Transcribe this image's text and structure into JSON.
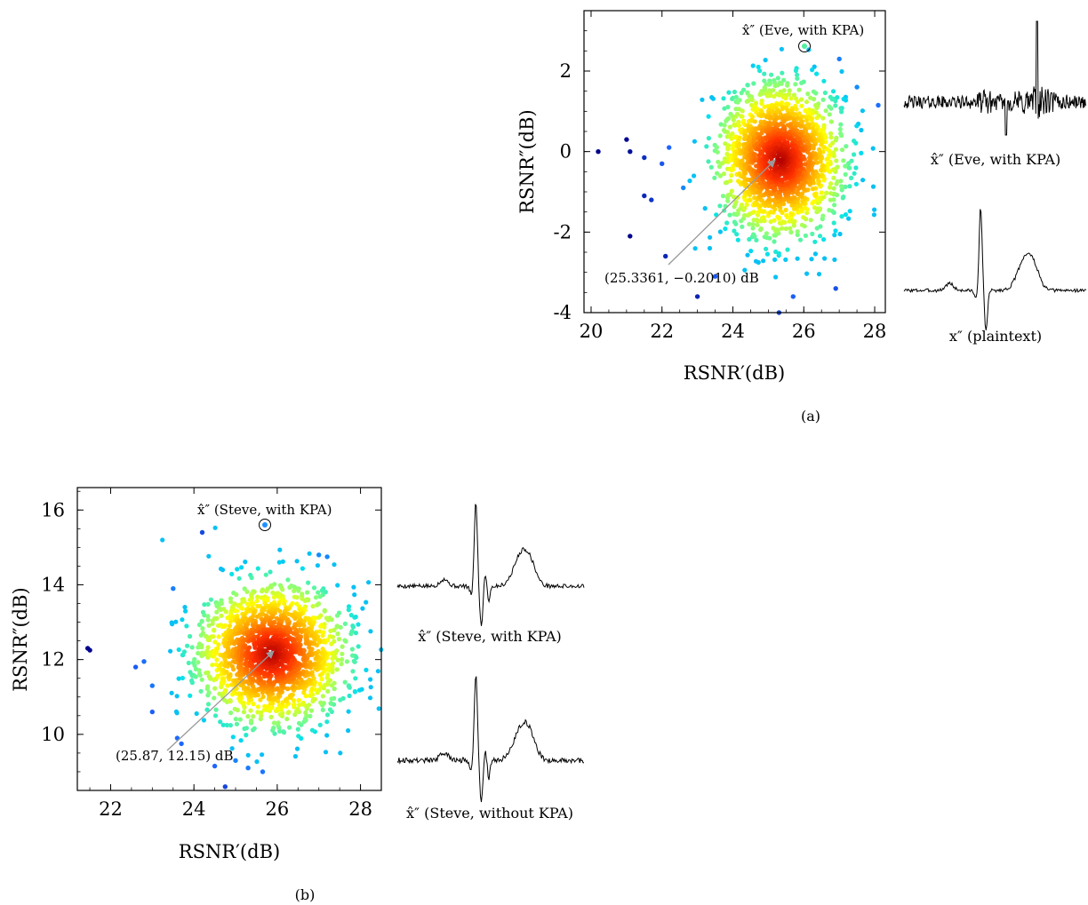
{
  "chart_data": [
    {
      "type": "scatter",
      "panel": "(a)",
      "xlabel": "RSNR′(dB)",
      "ylabel": "RSNR″(dB)",
      "xlim": [
        19.8,
        28.3
      ],
      "ylim": [
        -4.0,
        3.5
      ],
      "xticks": [
        "20",
        "22",
        "24",
        "26",
        "28"
      ],
      "yticks": [
        "2",
        "0",
        "-2",
        "-4"
      ],
      "xtick_values": [
        20,
        22,
        24,
        26,
        28
      ],
      "ytick_values": [
        2,
        0,
        -2,
        -4
      ],
      "center": [
        25.3361,
        -0.201
      ],
      "spread": [
        0.85,
        0.9
      ],
      "num_points": 1800,
      "outliers": [
        [
          20.2,
          0.0
        ],
        [
          21.0,
          0.3
        ],
        [
          21.1,
          0.0
        ],
        [
          21.5,
          -0.15
        ],
        [
          21.5,
          -1.1
        ],
        [
          21.7,
          -1.2
        ],
        [
          21.1,
          -2.1
        ],
        [
          22.1,
          -2.6
        ],
        [
          23.0,
          -3.6
        ],
        [
          25.3,
          -4.0
        ],
        [
          25.7,
          -3.6
        ],
        [
          26.9,
          -3.4
        ],
        [
          22.2,
          0.1
        ],
        [
          22.0,
          -0.3
        ],
        [
          22.6,
          -0.9
        ],
        [
          23.5,
          -3.1
        ],
        [
          27.0,
          2.3
        ],
        [
          28.1,
          1.15
        ],
        [
          27.5,
          1.6
        ]
      ],
      "highlight": [
        26.1,
        2.65
      ],
      "highlight_label": "x̂″ (Eve, with KPA)",
      "annotation": "(25.3361, −0.2010) dB",
      "colormap": [
        "#00008b",
        "#1e64ff",
        "#00e0f0",
        "#80ff80",
        "#ffff00",
        "#ffa000",
        "#ff3000",
        "#b00000"
      ]
    },
    {
      "type": "scatter",
      "panel": "(b)",
      "xlabel": "RSNR′(dB)",
      "ylabel": "RSNR″(dB)",
      "xlim": [
        21.2,
        28.5
      ],
      "ylim": [
        8.5,
        16.6
      ],
      "xticks": [
        "22",
        "24",
        "26",
        "28"
      ],
      "yticks": [
        "16",
        "14",
        "12",
        "10"
      ],
      "xtick_values": [
        22,
        24,
        26,
        28
      ],
      "ytick_values": [
        16,
        14,
        12,
        10
      ],
      "center": [
        25.87,
        12.15
      ],
      "spread": [
        0.85,
        0.9
      ],
      "num_points": 1800,
      "outliers": [
        [
          21.45,
          12.3
        ],
        [
          21.5,
          12.25
        ],
        [
          24.2,
          15.4
        ],
        [
          22.6,
          11.8
        ],
        [
          22.8,
          11.95
        ],
        [
          23.0,
          10.6
        ],
        [
          23.6,
          9.9
        ],
        [
          23.7,
          9.75
        ],
        [
          24.5,
          9.15
        ],
        [
          24.75,
          8.6
        ],
        [
          25.0,
          9.3
        ],
        [
          25.3,
          9.1
        ],
        [
          25.65,
          9.0
        ],
        [
          23.0,
          11.3
        ],
        [
          23.5,
          13.9
        ],
        [
          27.0,
          14.8
        ],
        [
          27.2,
          14.75
        ]
      ],
      "highlight": [
        25.7,
        15.65
      ],
      "highlight_label": "x̂″ (Steve, with KPA)",
      "annotation": "(25.87, 12.15) dB",
      "colormap": [
        "#00008b",
        "#1e64ff",
        "#00e0f0",
        "#80ff80",
        "#ffff00",
        "#ffa000",
        "#ff3000",
        "#b00000"
      ]
    }
  ],
  "waveforms": {
    "eve": "x̂″ (Eve, with KPA)",
    "plain": "x″ (plaintext)",
    "steve_kpa": "x̂″ (Steve, with KPA)",
    "steve_nokpa": "x̂″ (Steve, without KPA)"
  },
  "captions": {
    "a": "(a)",
    "b": "(b)"
  }
}
